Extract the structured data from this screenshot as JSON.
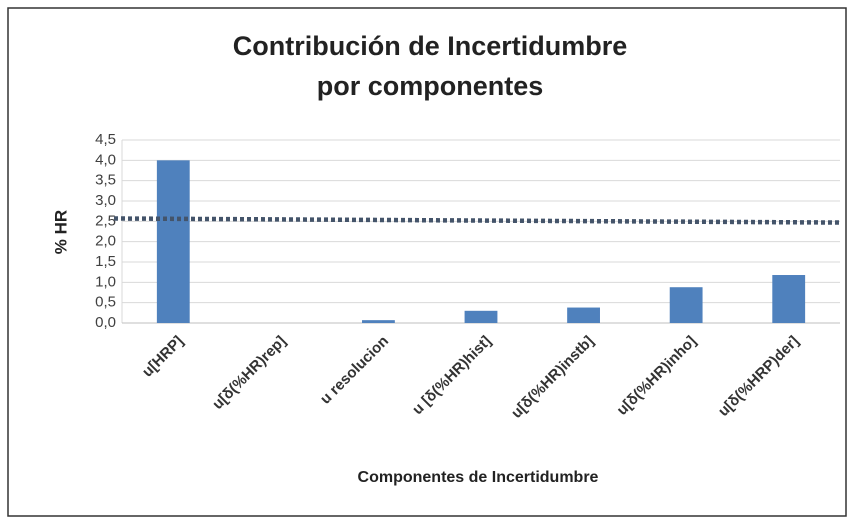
{
  "chart_data": {
    "type": "bar",
    "title": "Contribución de Incertidumbre por componentes",
    "y_label": "% HR",
    "x_label": "Componentes de Incertidumbre",
    "categories": [
      "u[HRP]",
      "u[δ(%HR)rep]",
      "u resolucion",
      "u [δ(%HR)hist]",
      "u[δ(%HR)instb]",
      "u[δ(%HR)inho]",
      "u[δ(%HRP)der]"
    ],
    "values": [
      4.0,
      0,
      0.07,
      0.3,
      0.38,
      0.88,
      1.18
    ],
    "color": "#4f81bd",
    "trendline": {
      "values": [
        2.57,
        2.47
      ],
      "color": "#44546a"
    },
    "ylim": [
      0,
      4.5
    ],
    "yticks": [
      {
        "value": 0,
        "label": "0,0"
      },
      {
        "value": 0.5,
        "label": "0,5"
      },
      {
        "value": 1,
        "label": "1,0"
      },
      {
        "value": 1.5,
        "label": "1,5"
      },
      {
        "value": 2,
        "label": "2,0"
      },
      {
        "value": 2.5,
        "label": "2,5"
      },
      {
        "value": 3,
        "label": "3,0"
      },
      {
        "value": 3.5,
        "label": "3,5"
      },
      {
        "value": 4,
        "label": "4,0"
      },
      {
        "value": 4.5,
        "label": "4,5"
      }
    ],
    "grid": true
  }
}
